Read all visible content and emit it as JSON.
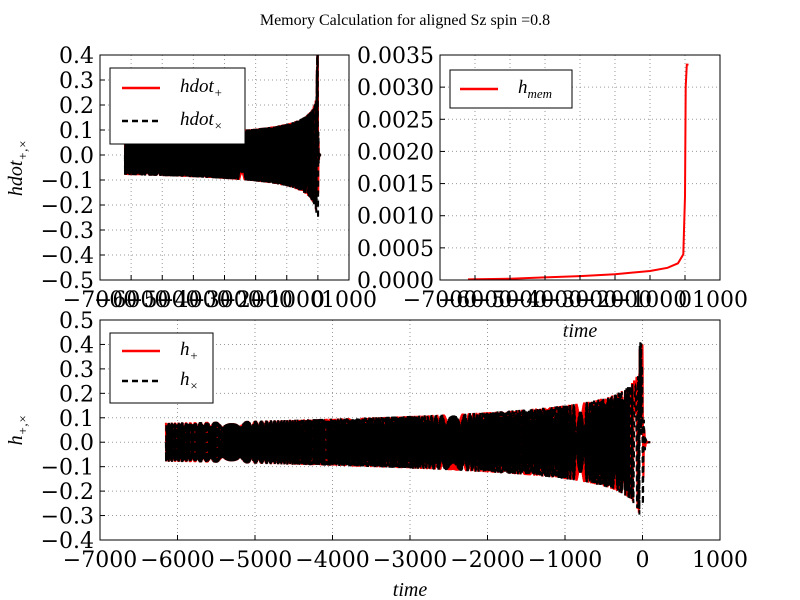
{
  "figure_title": "Memory Calculation for aligned Sz spin =0.8",
  "chart_data": [
    {
      "id": "hdot",
      "type": "line",
      "title": "",
      "xlabel": "",
      "ylabel": "hdot_{+,×}",
      "xlim": [
        -7000,
        1000
      ],
      "ylim": [
        -0.5,
        0.4
      ],
      "xticks": [
        "−7000",
        "−6000",
        "−5000",
        "−4000",
        "−3000",
        "−2000",
        "−1000",
        "0",
        "1000"
      ],
      "yticks": [
        "−0.5",
        "−0.4",
        "−0.3",
        "−0.2",
        "−0.1",
        "0.0",
        "0.1",
        "0.2",
        "0.3",
        "0.4"
      ],
      "grid": true,
      "legend_position": "top-left",
      "series": [
        {
          "name": "hdot_+",
          "color": "#ff0000",
          "style": "solid",
          "start": -6200,
          "end": 100,
          "amp_early": 0.08,
          "amp_peak": 0.38,
          "amp_min": -0.42
        },
        {
          "name": "hdot_×",
          "color": "#000000",
          "style": "dashed",
          "start": -6200,
          "end": 100,
          "amp_early": 0.08,
          "amp_peak": 0.38,
          "amp_min": -0.42
        }
      ]
    },
    {
      "id": "hmem",
      "type": "line",
      "title": "",
      "xlabel": "time",
      "ylabel": "",
      "xlim": [
        -7000,
        1000
      ],
      "ylim": [
        0.0,
        0.0035
      ],
      "xticks": [
        "−7000",
        "−6000",
        "−5000",
        "−4000",
        "−3000",
        "−2000",
        "−1000",
        "0",
        "1000"
      ],
      "yticks": [
        "0.0000",
        "0.0005",
        "0.0010",
        "0.0015",
        "0.0020",
        "0.0025",
        "0.0030",
        "0.0035"
      ],
      "grid": true,
      "legend_position": "top-left",
      "series": [
        {
          "name": "h_mem",
          "color": "#ff0000",
          "style": "solid",
          "x": [
            -6200,
            -5000,
            -4000,
            -3000,
            -2000,
            -1000,
            -500,
            -200,
            -50,
            0,
            20,
            50,
            100
          ],
          "y": [
            1e-05,
            2e-05,
            4e-05,
            6e-05,
            9e-05,
            0.00014,
            0.00019,
            0.00026,
            0.0004,
            0.0013,
            0.003,
            0.00335,
            0.00335
          ]
        }
      ]
    },
    {
      "id": "h",
      "type": "line",
      "title": "",
      "xlabel": "time",
      "ylabel": "h_{+,×}",
      "xlim": [
        -7000,
        1000
      ],
      "ylim": [
        -0.4,
        0.5
      ],
      "xticks": [
        "−7000",
        "−6000",
        "−5000",
        "−4000",
        "−3000",
        "−2000",
        "−1000",
        "0",
        "1000"
      ],
      "yticks": [
        "−0.4",
        "−0.3",
        "−0.2",
        "−0.1",
        "0.0",
        "0.1",
        "0.2",
        "0.3",
        "0.4",
        "0.5"
      ],
      "grid": true,
      "legend_position": "top-left",
      "series": [
        {
          "name": "h_+",
          "color": "#ff0000",
          "style": "solid",
          "start": -6150,
          "end": 100,
          "amp_early": 0.08,
          "amp_late": 0.1,
          "amp_peak": 0.4,
          "amp_min": -0.39
        },
        {
          "name": "h_×",
          "color": "#000000",
          "style": "dashed",
          "start": -6150,
          "end": 100,
          "amp_early": 0.08,
          "amp_late": 0.1,
          "amp_peak": 0.42,
          "amp_min": -0.38
        }
      ]
    }
  ],
  "legend_labels": {
    "hdot_plus": {
      "base": "hdot",
      "sub": "+"
    },
    "hdot_cross": {
      "base": "hdot",
      "sub": "×"
    },
    "h_mem": {
      "base": "h",
      "sub": "mem"
    },
    "h_plus": {
      "base": "h",
      "sub": "+"
    },
    "h_cross": {
      "base": "h",
      "sub": "×"
    }
  },
  "axis_labels": {
    "top_left_y": {
      "base": "hdot",
      "sub": "+,×"
    },
    "top_right_x": "time",
    "bottom_y": {
      "base": "h",
      "sub": "+,×"
    },
    "bottom_x": "time"
  }
}
